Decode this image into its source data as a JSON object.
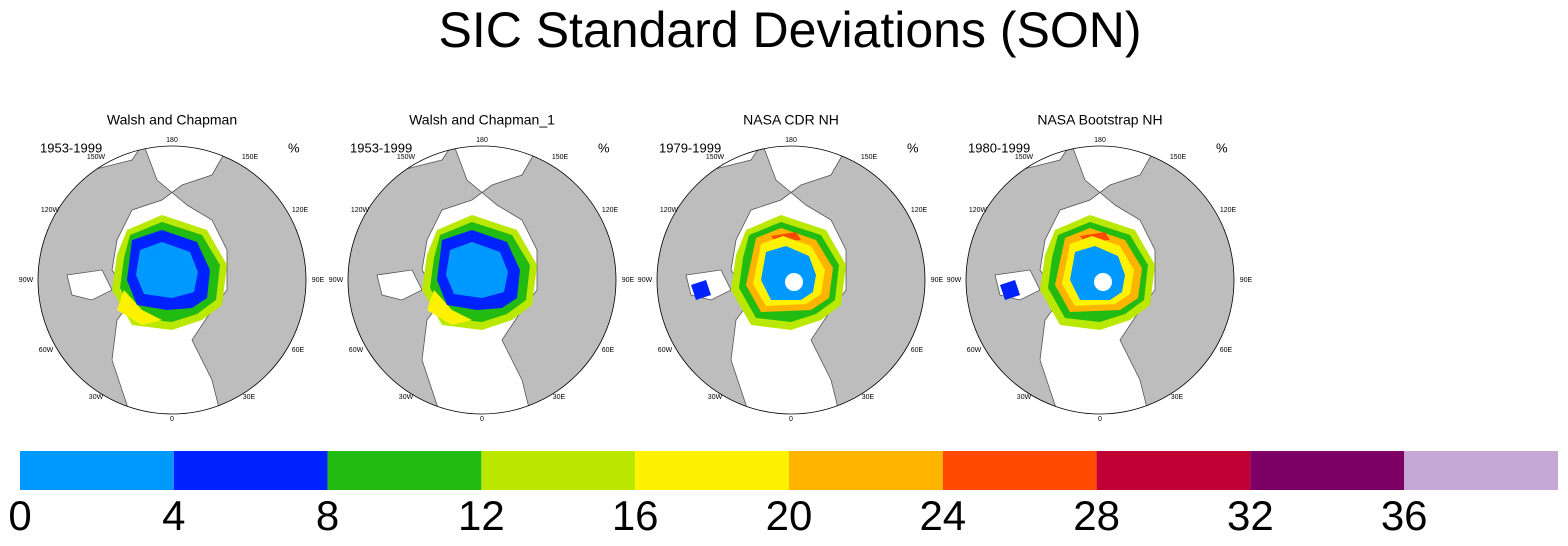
{
  "title": "SIC Standard Deviations (SON)",
  "panels": [
    {
      "title": "Walsh and Chapman",
      "period": "1953-1999",
      "unit": "%"
    },
    {
      "title": "Walsh and Chapman_1",
      "period": "1953-1999",
      "unit": "%"
    },
    {
      "title": "NASA CDR NH",
      "period": "1979-1999",
      "unit": "%"
    },
    {
      "title": "NASA Bootstrap NH",
      "period": "1980-1999",
      "unit": "%"
    }
  ],
  "longitude_labels": [
    "180",
    "150W",
    "150E",
    "120W",
    "120E",
    "90W",
    "90E",
    "60W",
    "60E",
    "30W",
    "30E",
    "0"
  ],
  "colorbar": {
    "levels": [
      0,
      4,
      8,
      12,
      16,
      20,
      24,
      28,
      32,
      36
    ],
    "colors": [
      "#0099ff",
      "#0022ff",
      "#22bb11",
      "#bbe800",
      "#fff200",
      "#ffb400",
      "#ff4a00",
      "#c00034",
      "#7e0066",
      "#c5a8d6"
    ]
  }
}
